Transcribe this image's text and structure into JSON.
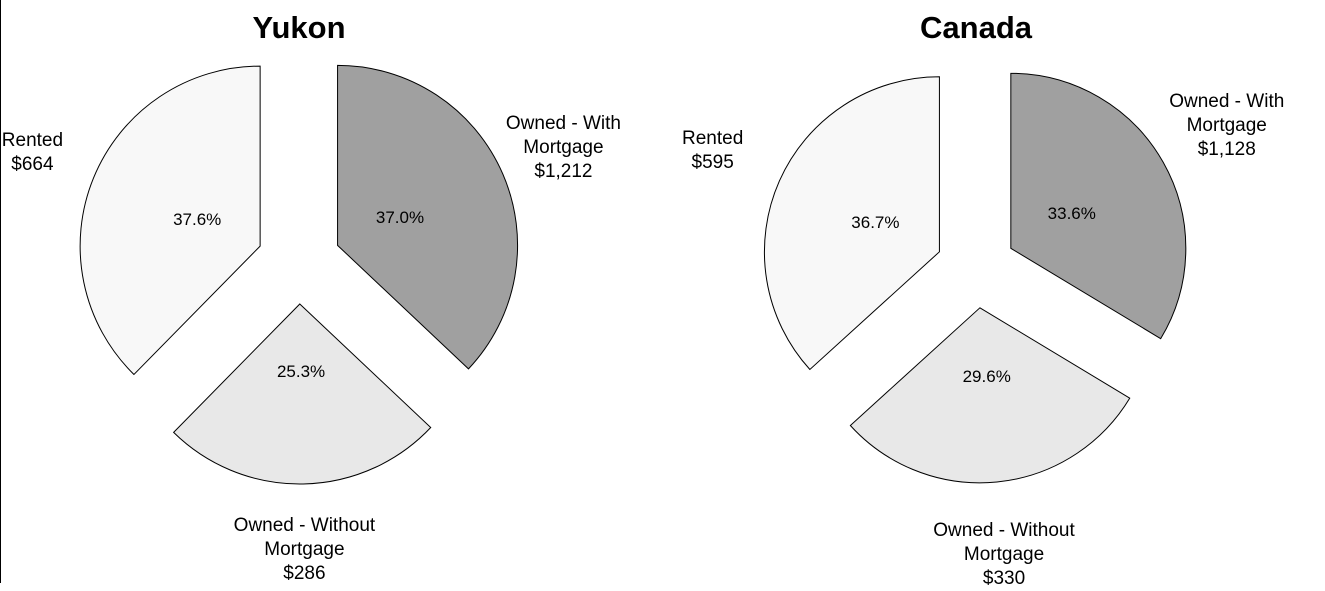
{
  "chart_data": [
    {
      "type": "pie",
      "title": "Yukon",
      "categories": [
        "Owned - With Mortgage",
        "Owned - Without Mortgage",
        "Rented"
      ],
      "values": [
        37.0,
        25.3,
        37.6
      ],
      "value_labels": [
        "37.0%",
        "25.3%",
        "37.6%"
      ],
      "amounts": [
        1212,
        286,
        664
      ],
      "amount_labels": [
        "$1,212",
        "$286",
        "$664"
      ],
      "colors": [
        "#a0a0a0",
        "#e8e8e8",
        "#f8f8f8"
      ]
    },
    {
      "type": "pie",
      "title": "Canada",
      "categories": [
        "Owned - With Mortgage",
        "Owned - Without Mortgage",
        "Rented"
      ],
      "values": [
        33.6,
        29.6,
        36.7
      ],
      "value_labels": [
        "33.6%",
        "29.6%",
        "36.7%"
      ],
      "amounts": [
        1128,
        330,
        595
      ],
      "amount_labels": [
        "$1,128",
        "$330",
        "$595"
      ],
      "colors": [
        "#a0a0a0",
        "#e8e8e8",
        "#f8f8f8"
      ]
    }
  ]
}
